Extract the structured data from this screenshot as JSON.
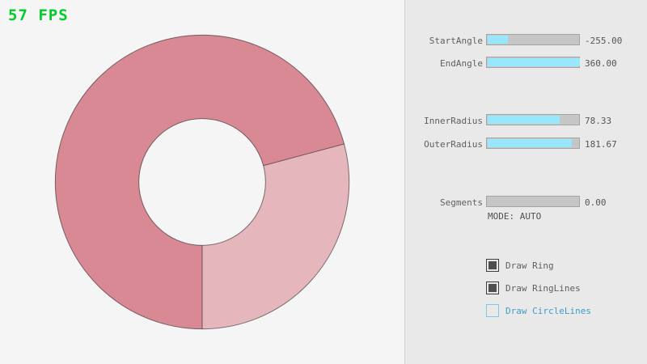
{
  "fps": {
    "text": "57 FPS",
    "color": "#00cc2c"
  },
  "ring": {
    "outer_radius": 181.67,
    "inner_radius": 78.33,
    "outline_color": "rgba(0,0,0,0.5)",
    "sectors": [
      {
        "from_deg": 90,
        "to_deg": 345,
        "color": "#d98994"
      },
      {
        "from_deg": 345,
        "to_deg": 450,
        "color": "#e6b6bd"
      }
    ],
    "edge_line_angles": [
      90,
      345
    ]
  },
  "controls": {
    "sliders": [
      {
        "label": "StartAngle",
        "value": "-255.00",
        "fill_pct": 21.7
      },
      {
        "label": "EndAngle",
        "value": "360.00",
        "fill_pct": 100
      },
      {
        "label": "InnerRadius",
        "value": "78.33",
        "fill_pct": 78.3
      },
      {
        "label": "OuterRadius",
        "value": "181.67",
        "fill_pct": 90.8
      },
      {
        "label": "Segments",
        "value": "0.00",
        "fill_pct": 0
      }
    ],
    "mode_text": "MODE: AUTO",
    "checkboxes": [
      {
        "label": "Draw Ring",
        "checked": true
      },
      {
        "label": "Draw RingLines",
        "checked": true
      },
      {
        "label": "Draw CircleLines",
        "checked": false
      }
    ],
    "accent_fill_color": "#97e8ff"
  }
}
